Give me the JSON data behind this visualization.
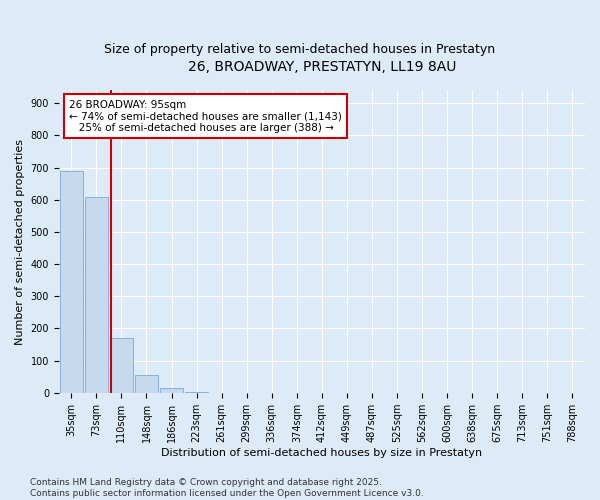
{
  "title": "26, BROADWAY, PRESTATYN, LL19 8AU",
  "subtitle": "Size of property relative to semi-detached houses in Prestatyn",
  "xlabel": "Distribution of semi-detached houses by size in Prestatyn",
  "ylabel": "Number of semi-detached properties",
  "bin_labels": [
    "35sqm",
    "73sqm",
    "110sqm",
    "148sqm",
    "186sqm",
    "223sqm",
    "261sqm",
    "299sqm",
    "336sqm",
    "374sqm",
    "412sqm",
    "449sqm",
    "487sqm",
    "525sqm",
    "562sqm",
    "600sqm",
    "638sqm",
    "675sqm",
    "713sqm",
    "751sqm",
    "788sqm"
  ],
  "bar_values": [
    690,
    610,
    170,
    55,
    15,
    2,
    0,
    0,
    0,
    0,
    0,
    0,
    0,
    0,
    0,
    0,
    0,
    0,
    0,
    0,
    0
  ],
  "bar_color": "#c5d9ef",
  "bar_edgecolor": "#8ab0d4",
  "annotation_text": "26 BROADWAY: 95sqm\n← 74% of semi-detached houses are smaller (1,143)\n   25% of semi-detached houses are larger (388) →",
  "annotation_box_facecolor": "#ffffff",
  "annotation_box_edgecolor": "#cc0000",
  "vline_color": "#cc0000",
  "ylim": [
    0,
    940
  ],
  "yticks": [
    0,
    100,
    200,
    300,
    400,
    500,
    600,
    700,
    800,
    900
  ],
  "background_color": "#ddeaf7",
  "grid_color": "#ffffff",
  "footer_text": "Contains HM Land Registry data © Crown copyright and database right 2025.\nContains public sector information licensed under the Open Government Licence v3.0.",
  "title_fontsize": 10,
  "subtitle_fontsize": 9,
  "label_fontsize": 8,
  "tick_fontsize": 7,
  "annotation_fontsize": 7.5,
  "footer_fontsize": 6.5
}
